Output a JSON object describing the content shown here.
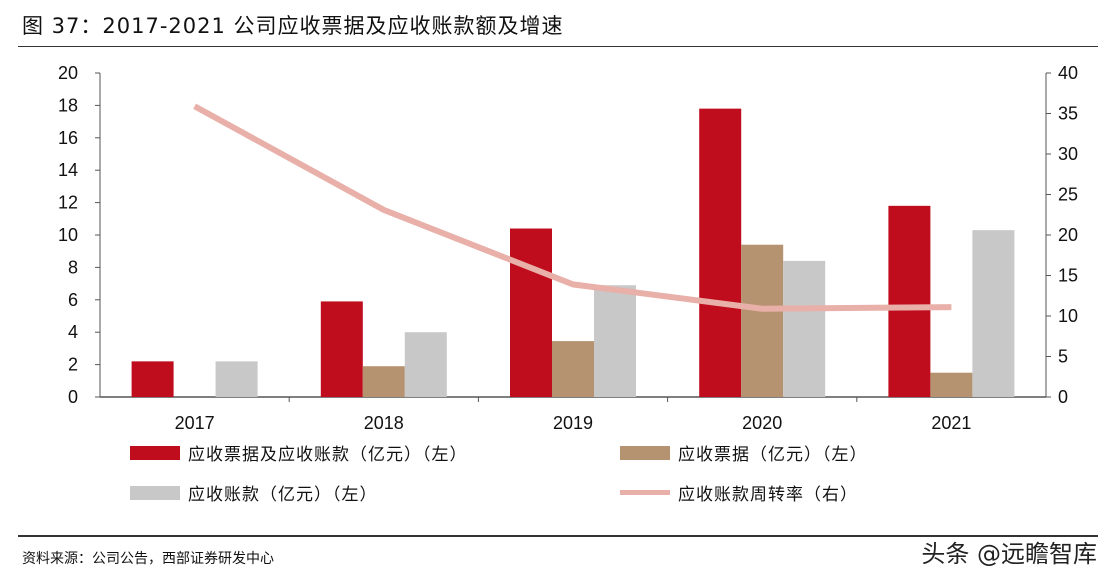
{
  "title": "图 37：2017-2021 公司应收票据及应收账款额及增速",
  "source": "资料来源：公司公告，西部证券研发中心",
  "watermark": "头条 @远瞻智库",
  "chart_data": {
    "type": "bar",
    "categories": [
      "2017",
      "2018",
      "2019",
      "2020",
      "2021"
    ],
    "series": [
      {
        "name": "应收票据及应收账款（亿元）（左）",
        "type": "bar",
        "axis": "left",
        "color": "#c00d1e",
        "values": [
          2.2,
          5.9,
          10.4,
          17.8,
          11.8
        ]
      },
      {
        "name": "应收票据（亿元）（左）",
        "type": "bar",
        "axis": "left",
        "color": "#b59370",
        "values": [
          0,
          1.9,
          3.45,
          9.4,
          1.5
        ]
      },
      {
        "name": "应收账款（亿元）（左）",
        "type": "bar",
        "axis": "left",
        "color": "#c8c8c8",
        "values": [
          2.2,
          4.0,
          6.9,
          8.4,
          10.3
        ]
      },
      {
        "name": "应收账款周转率（右）",
        "type": "line",
        "axis": "right",
        "color": "#e8b0a8",
        "values": [
          35.9,
          23.1,
          13.9,
          10.9,
          11.1
        ]
      }
    ],
    "y_left": {
      "min": 0,
      "max": 20,
      "ticks": [
        "0",
        "2",
        "4",
        "6",
        "8",
        "10",
        "12",
        "14",
        "16",
        "18",
        "20"
      ]
    },
    "y_right": {
      "min": 0,
      "max": 40,
      "ticks": [
        "0",
        "5",
        "10",
        "15",
        "20",
        "25",
        "30",
        "35",
        "40"
      ]
    },
    "grid": false,
    "legend": "bottom"
  }
}
